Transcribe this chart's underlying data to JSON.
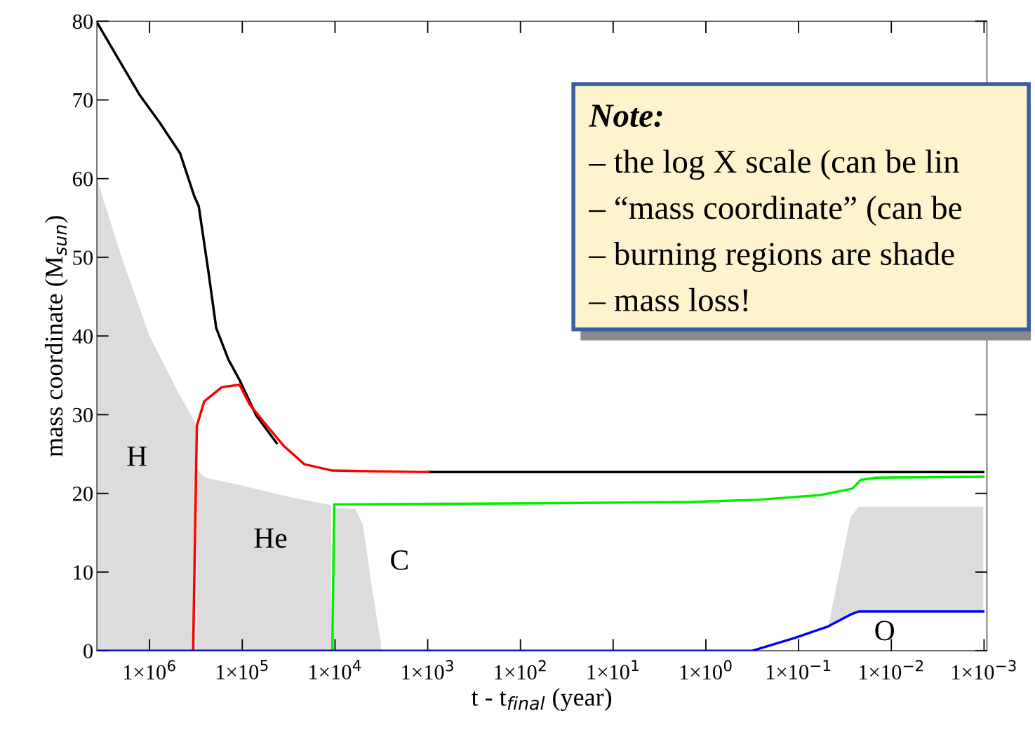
{
  "chart_data": {
    "type": "line",
    "xlabel": "t - t$_{final}$ (year)",
    "ylabel": "mass coordinate (M$_{sun}$)",
    "log": "x",
    "xlim": [
      3700000.0,
      0.00093
    ],
    "xticks": [
      {
        "value": 1000000,
        "label": "1×10$^{6}$"
      },
      {
        "value": 100000,
        "label": "1×10$^{5}$"
      },
      {
        "value": 10000,
        "label": "1×10$^{4}$"
      },
      {
        "value": 1000,
        "label": "1×10$^{3}$"
      },
      {
        "value": 100,
        "label": "1×10$^{2}$"
      },
      {
        "value": 10,
        "label": "1×10$^{1}$"
      },
      {
        "value": 1,
        "label": "1×10$^{0}$"
      },
      {
        "value": 0.1,
        "label": "1×10$^{−1}$"
      },
      {
        "value": 0.01,
        "label": "1×10$^{−2}$"
      },
      {
        "value": 0.001,
        "label": "1×10$^{−3}$"
      }
    ],
    "ylim": [
      0,
      80
    ],
    "yticks": [
      0,
      10,
      20,
      30,
      40,
      50,
      60,
      70,
      80
    ],
    "grid": false,
    "legend": false,
    "marker": "none",
    "line_style": "solid",
    "series": [
      {
        "type": "area",
        "color": "#dcdcdc",
        "x": [
          3700000.0,
          2000000.0,
          1000000.0,
          500000.0,
          320000.0
        ],
        "values": [
          60,
          50,
          40,
          33,
          29
        ]
      },
      {
        "type": "area",
        "color": "#dcdcdc",
        "x": [
          310000.0,
          250000.0,
          100000.0,
          30000.0,
          11000.0
        ],
        "values": [
          23,
          22,
          21,
          19.5,
          18.5
        ]
      },
      {
        "type": "area",
        "color": "#dcdcdc",
        "x": [
          10500.0,
          6000.0,
          5000.0,
          4000.0,
          3200.0
        ],
        "values": [
          18.2,
          18,
          16,
          8,
          1
        ]
      },
      {
        "color": "#000000",
        "x": [
          3630000.0,
          2140000.0,
          1290000.0,
          776000.0,
          468000.0,
          330000.0,
          295000.0,
          234000.0,
          191000.0,
          141000.0,
          107000.0,
          70800.0,
          42700.0,
          21400.0,
          10700.0,
          1000,
          0.00102
        ],
        "values": [
          79.7,
          75.1,
          70.7,
          67.1,
          63.2,
          57.8,
          56.5,
          48.5,
          41.0,
          37.0,
          34.4,
          29.9,
          26.4,
          null,
          null,
          22.7,
          22.7
        ]
      },
      {
        "color": "#ff0000",
        "x": [
          339000.0,
          309000.0,
          257000.0,
          166000.0,
          107000.0,
          83200.0,
          58900.0,
          35500.0,
          21400.0,
          10700.0,
          977
        ],
        "values": [
          0,
          28.6,
          31.7,
          33.5,
          33.8,
          31.3,
          29.1,
          26.0,
          23.7,
          22.9,
          22.7
        ]
      },
      {
        "color": "#00ee00",
        "x": [
          10700.0,
          10200.0,
          251,
          1.48,
          0.263,
          0.0575,
          0.0263,
          0.0214,
          0.0145,
          0.00102
        ],
        "values": [
          0,
          18.6,
          18.7,
          18.9,
          19.2,
          19.8,
          20.6,
          21.7,
          22.0,
          22.1
        ]
      },
      {
        "color": "#0000ff",
        "x": [
          3700000.0,
          0.316,
          0.112,
          0.0479,
          0.0275,
          0.0224,
          0.00102
        ],
        "values": [
          0,
          0,
          1.6,
          3.1,
          4.6,
          5.0,
          5.0
        ],
        "lower": [
          0,
          0,
          1.6,
          3.1,
          4.6,
          5.0,
          5.0
        ],
        "upper": [
          0,
          0,
          1.6,
          3.1,
          17,
          18.3,
          18.3
        ]
      }
    ],
    "annotations": [
      "H",
      "He",
      "C",
      "O",
      "Note:",
      "– the log X scale (can be lin",
      "– “mass coordinate” (can be",
      "– burning regions are shade",
      "– mass loss!"
    ]
  }
}
